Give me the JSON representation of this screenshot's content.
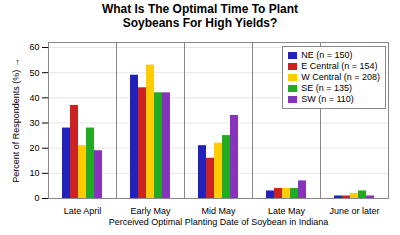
{
  "chart_data": {
    "type": "bar",
    "title": "What Is The Optimal Time To Plant\nSoybeans For High Yields?",
    "xlabel": "Perceived Optimal Planting Date of Soybean in Indiana",
    "ylabel": "Percent of Respondents (%)",
    "categories": [
      "Late April",
      "Early May",
      "Mid May",
      "Late May",
      "June or later"
    ],
    "series": [
      {
        "name": "NE (n = 150)",
        "color": "#2222bb",
        "values": [
          28,
          49,
          21,
          3,
          1
        ]
      },
      {
        "name": "E Central (n = 154)",
        "color": "#cc2222",
        "values": [
          37,
          44,
          16,
          4,
          1
        ]
      },
      {
        "name": "W Central (n = 208)",
        "color": "#ffcc00",
        "values": [
          21,
          53,
          22,
          4,
          2
        ]
      },
      {
        "name": "SE (n = 135)",
        "color": "#22aa22",
        "values": [
          28,
          42,
          25,
          4,
          3
        ]
      },
      {
        "name": "SW (n = 110)",
        "color": "#8833bb",
        "values": [
          19,
          42,
          33,
          7,
          1
        ]
      }
    ],
    "ylim": [
      0,
      62
    ],
    "yticks": [
      0,
      10,
      20,
      30,
      40,
      50,
      60
    ],
    "grid": true,
    "legend": "upper right"
  }
}
